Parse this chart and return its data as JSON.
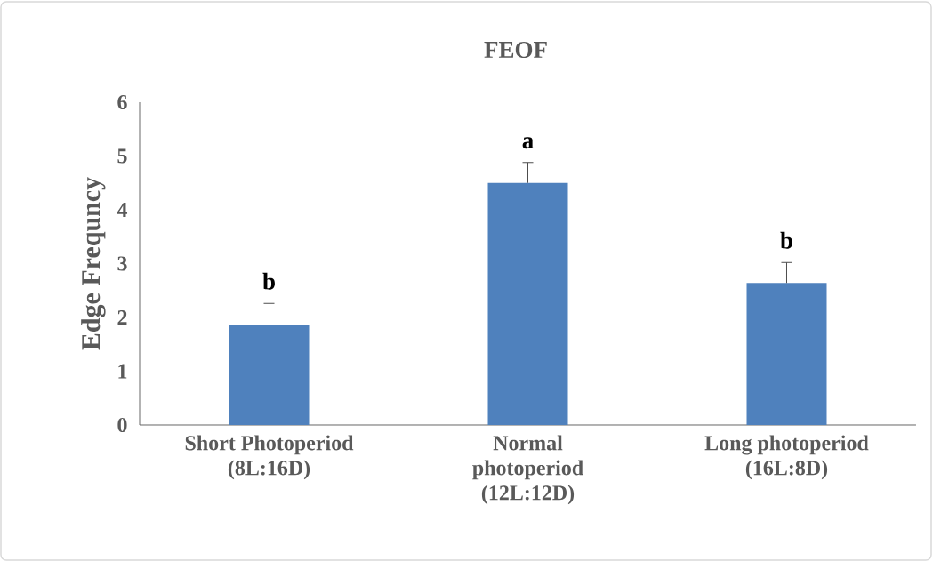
{
  "chart_data": {
    "type": "bar",
    "title": "FEOF",
    "ylabel": "Edge Frequncy",
    "categories": [
      "Short Photoperiod (8L:16D)",
      "Normal photoperiod (12L:12D)",
      "Long photoperiod (16L:8D)"
    ],
    "values": [
      1.85,
      4.5,
      2.64
    ],
    "errors": [
      [
        1.85,
        2.26
      ],
      [
        4.5,
        4.88
      ],
      [
        2.64,
        3.02
      ]
    ],
    "color": "#4f81bd",
    "ylim": [
      0,
      6
    ],
    "yticks": [
      0,
      1,
      2,
      3,
      4,
      5,
      6
    ],
    "annotations": [
      "b",
      "a",
      "b"
    ]
  }
}
